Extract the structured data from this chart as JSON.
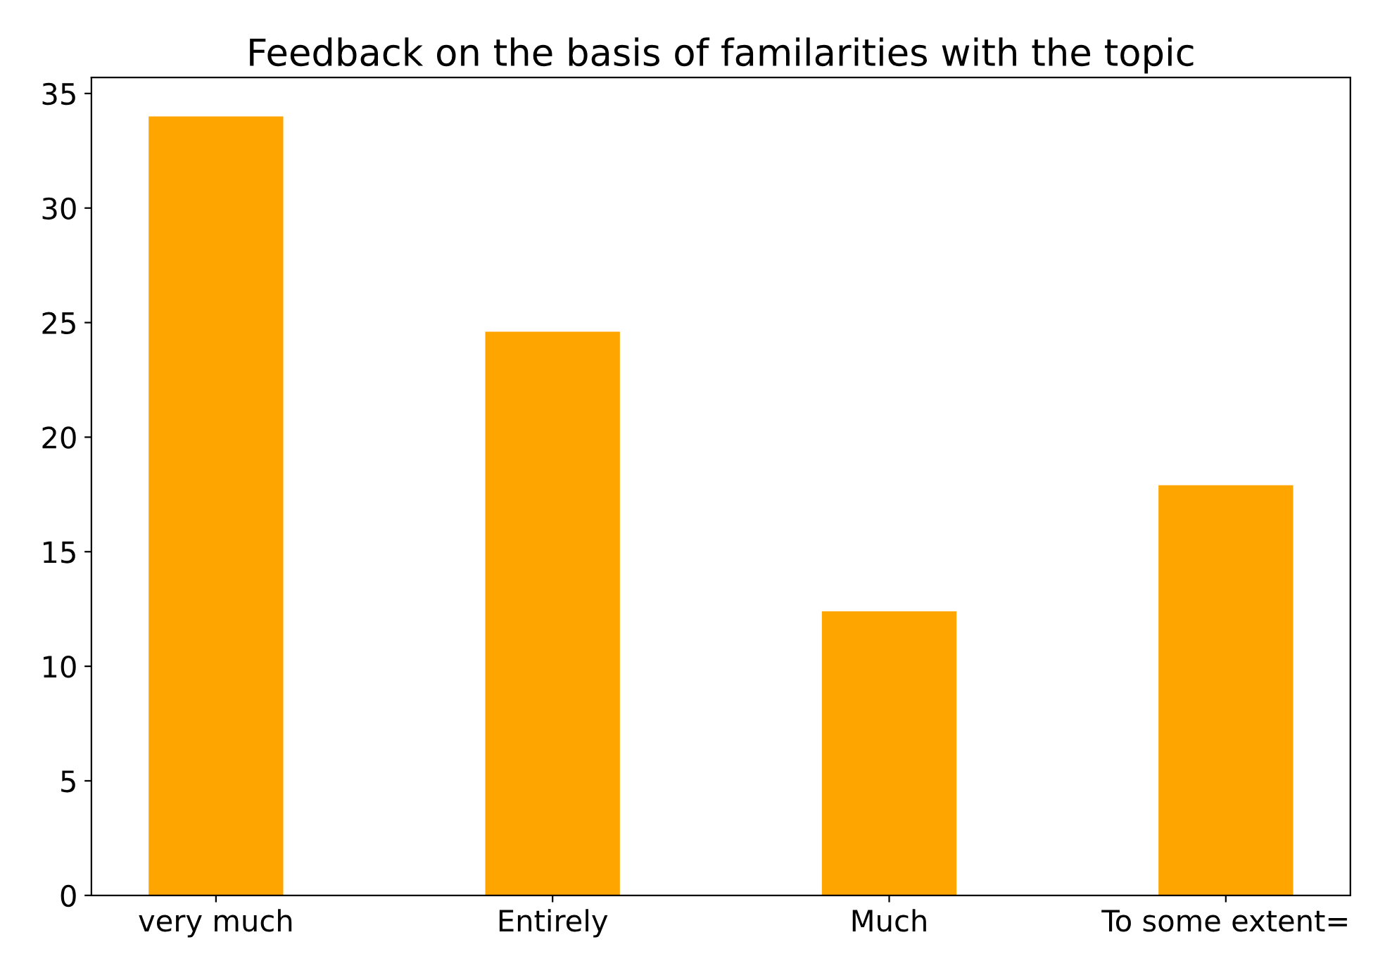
{
  "chart_data": {
    "type": "bar",
    "title": "Feedback on the basis of familarities with the topic",
    "categories": [
      "very much",
      "Entirely",
      "Much",
      "To some extent="
    ],
    "values": [
      34,
      24.6,
      12.4,
      17.9
    ],
    "color": "#ffa500",
    "ylim": [
      0,
      35.7
    ],
    "yticks": [
      0,
      5,
      10,
      15,
      20,
      25,
      30,
      35
    ],
    "grid": false
  }
}
